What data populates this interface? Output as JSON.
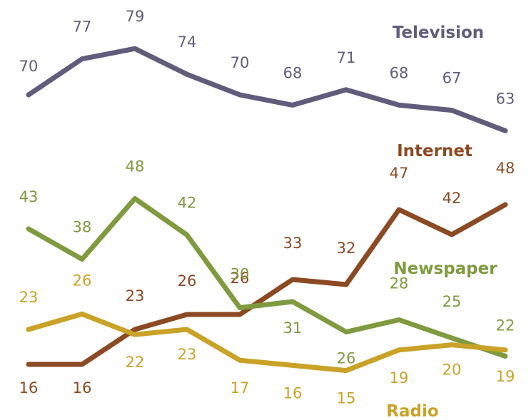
{
  "chart_data": {
    "type": "line",
    "x": [
      "1",
      "2",
      "3",
      "4",
      "5",
      "6",
      "7",
      "8",
      "9",
      "10"
    ],
    "series": [
      {
        "name": "Television",
        "color": "#615c79",
        "values": [
          70,
          77,
          79,
          74,
          70,
          68,
          71,
          68,
          67,
          63
        ]
      },
      {
        "name": "Internet",
        "color": "#8b4a23",
        "values": [
          16,
          16,
          23,
          26,
          26,
          33,
          32,
          47,
          42,
          48
        ]
      },
      {
        "name": "Newspaper",
        "color": "#7f9a3f",
        "values": [
          43,
          38,
          48,
          42,
          30,
          31,
          26,
          28,
          25,
          22
        ]
      },
      {
        "name": "Radio",
        "color": "#c9a227",
        "values": [
          23,
          26,
          22,
          23,
          17,
          16,
          15,
          19,
          20,
          19
        ]
      }
    ],
    "grid": false,
    "legend": "inline labels next to each line"
  }
}
